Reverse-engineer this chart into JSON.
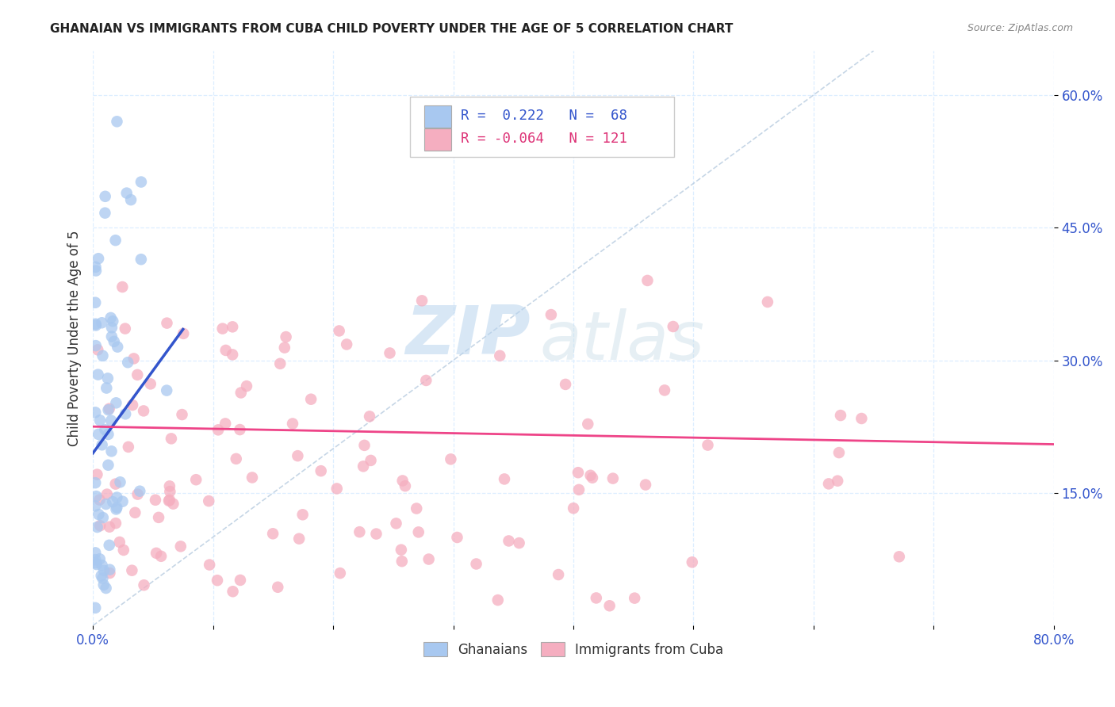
{
  "title": "GHANAIAN VS IMMIGRANTS FROM CUBA CHILD POVERTY UNDER THE AGE OF 5 CORRELATION CHART",
  "source": "Source: ZipAtlas.com",
  "ylabel": "Child Poverty Under the Age of 5",
  "xlim": [
    0,
    0.8
  ],
  "ylim": [
    0,
    0.65
  ],
  "xtick_positions": [
    0.0,
    0.1,
    0.2,
    0.3,
    0.4,
    0.5,
    0.6,
    0.7,
    0.8
  ],
  "xticklabels": [
    "0.0%",
    "",
    "",
    "",
    "",
    "",
    "",
    "",
    "80.0%"
  ],
  "ytick_positions": [
    0.15,
    0.3,
    0.45,
    0.6
  ],
  "ytick_labels": [
    "15.0%",
    "30.0%",
    "45.0%",
    "60.0%"
  ],
  "watermark_zip": "ZIP",
  "watermark_atlas": "atlas",
  "legend_line1": "R =  0.222   N =  68",
  "legend_line2": "R = -0.064   N = 121",
  "color_blue": "#a8c8f0",
  "color_pink": "#f5aec0",
  "line_blue": "#3355cc",
  "line_pink": "#ee4488",
  "diagonal_color": "#b8cce0",
  "background": "#ffffff",
  "grid_color": "#ddeeff",
  "blue_line_x0": 0.0,
  "blue_line_y0": 0.195,
  "blue_line_x1": 0.075,
  "blue_line_y1": 0.335,
  "pink_line_x0": 0.0,
  "pink_line_y0": 0.225,
  "pink_line_x1": 0.8,
  "pink_line_y1": 0.205
}
